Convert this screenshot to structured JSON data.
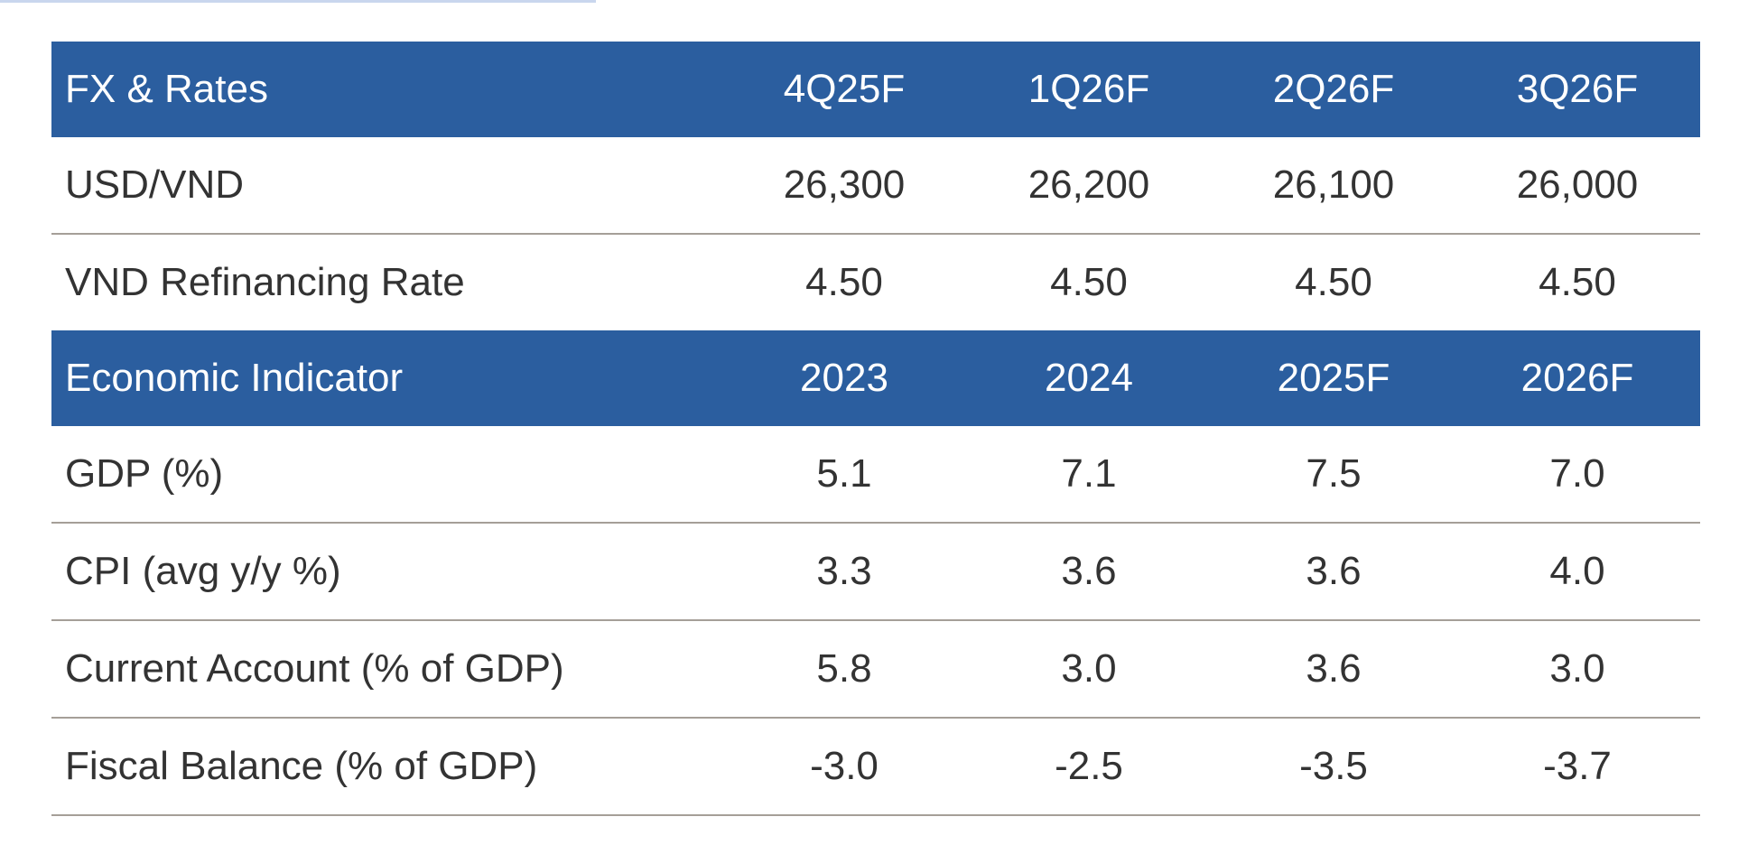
{
  "fx_table": {
    "header": {
      "label": "FX & Rates",
      "columns": [
        "4Q25F",
        "1Q26F",
        "2Q26F",
        "3Q26F"
      ]
    },
    "rows": [
      {
        "label": "USD/VND",
        "values": [
          "26,300",
          "26,200",
          "26,100",
          "26,000"
        ]
      },
      {
        "label": "VND Refinancing Rate",
        "values": [
          "4.50",
          "4.50",
          "4.50",
          "4.50"
        ]
      }
    ]
  },
  "econ_table": {
    "header": {
      "label": "Economic Indicator",
      "columns": [
        "2023",
        "2024",
        "2025F",
        "2026F"
      ]
    },
    "rows": [
      {
        "label": "GDP (%)",
        "values": [
          "5.1",
          "7.1",
          "7.5",
          "7.0"
        ]
      },
      {
        "label": "CPI (avg y/y %)",
        "values": [
          "3.3",
          "3.6",
          "3.6",
          "4.0"
        ]
      },
      {
        "label": "Current Account (% of GDP)",
        "values": [
          "5.8",
          "3.0",
          "3.6",
          "3.0"
        ]
      },
      {
        "label": "Fiscal Balance (% of GDP)",
        "values": [
          "-3.0",
          "-2.5",
          "-3.5",
          "-3.7"
        ]
      }
    ]
  },
  "colors": {
    "header_bg": "#2b5e9f",
    "header_text": "#ffffff",
    "row_divider": "#a59f98"
  }
}
